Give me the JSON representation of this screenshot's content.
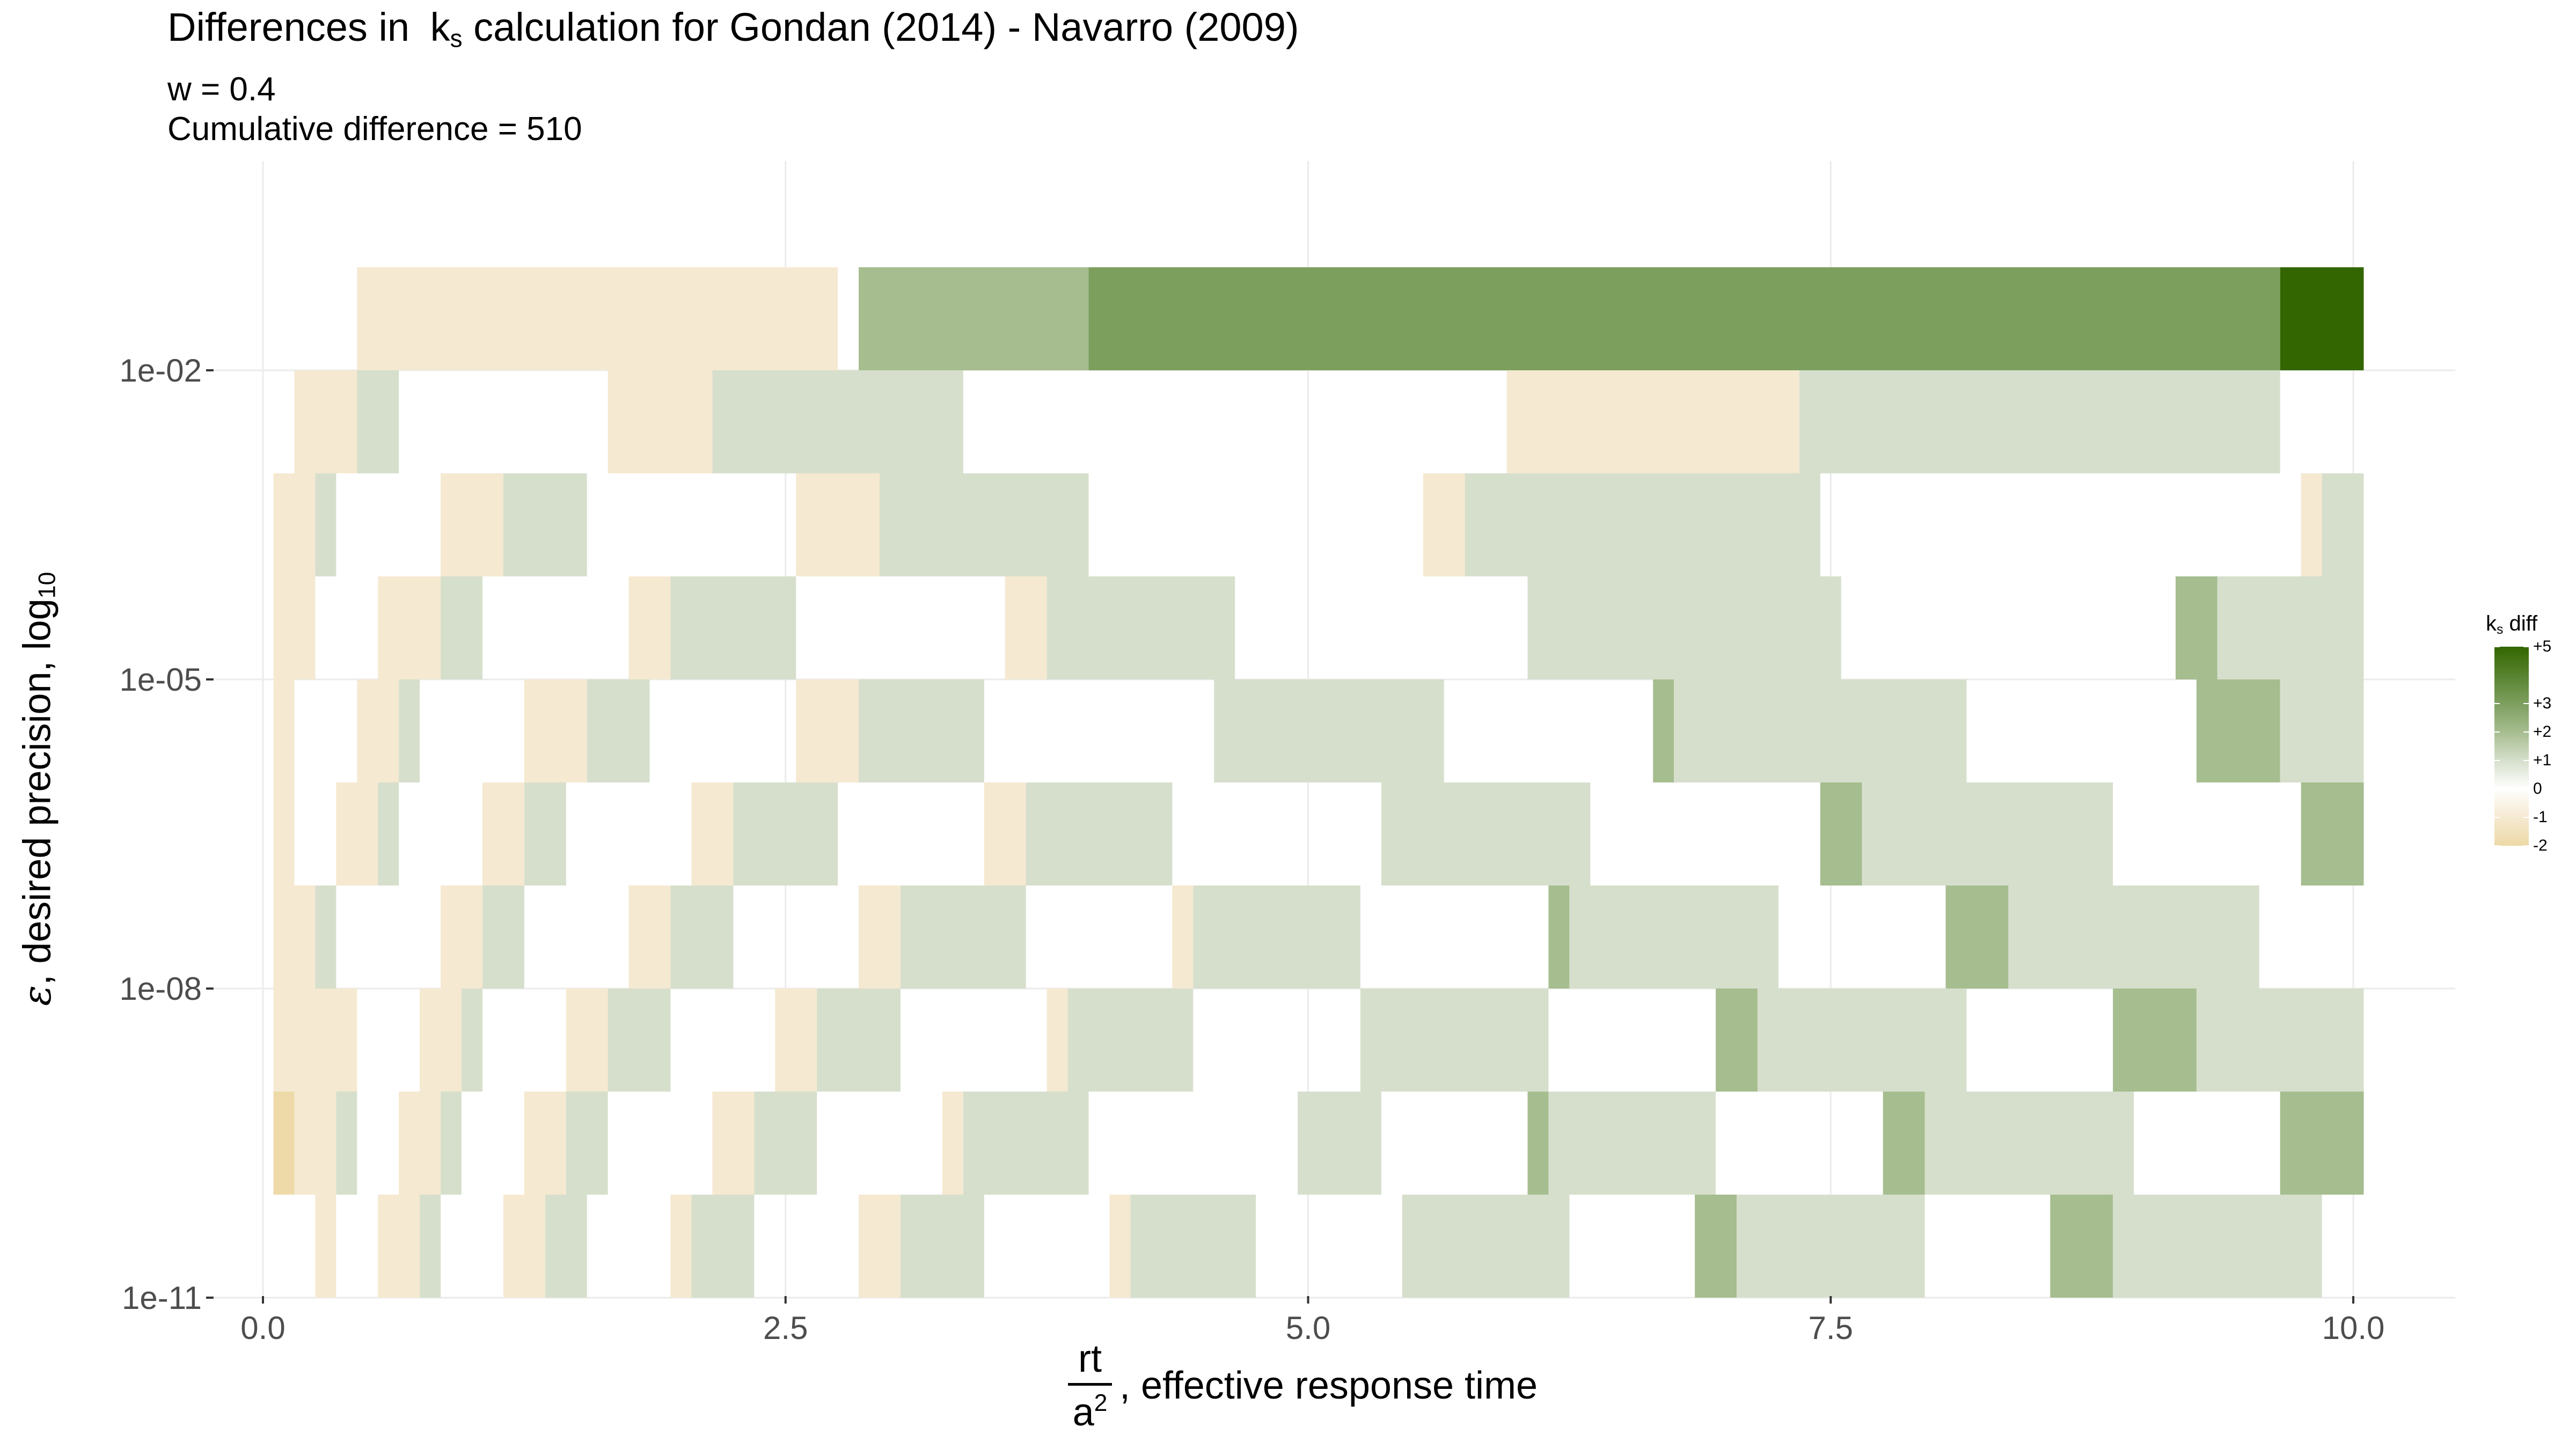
{
  "title": {
    "prefix": "Differences in",
    "k": "k",
    "k_sub": "s",
    "suffix": "calculation for Gondan (2014) - Navarro (2009)"
  },
  "subtitle_lines": [
    "w = 0.4",
    "Cumulative difference = 510"
  ],
  "chart_data": {
    "type": "heatmap",
    "xlabel": {
      "numerator": "rt",
      "denominator": "a",
      "denominator_sup": "2",
      "text": ", effective response time"
    },
    "ylabel": {
      "symbol": "ε",
      "text": ", desired precision,  log",
      "sub": "10"
    },
    "xlim": [
      0,
      10
    ],
    "x_ticks": [
      "0.0",
      "2.5",
      "5.0",
      "7.5",
      "10.0"
    ],
    "y_ticks": [
      "1e-02",
      "1e-05",
      "1e-08",
      "1e-11"
    ],
    "y_scale": "log10 of epsilon, rows at log10 = -1.5 to -10.5 in steps of 1",
    "grid": true,
    "legend": {
      "title": "k",
      "title_sub": "s",
      "title_suffix": " diff",
      "placement": "right",
      "labels": [
        "+5",
        "+3",
        "+2",
        "+1",
        "0",
        "-1",
        "-2"
      ],
      "colors": {
        "+5": "#336600",
        "+3": "#7d9f5e",
        "+2": "#a6bd8f",
        "+1": "#d6dfcc",
        "0": "#ffffff",
        "-1": "#f5e9d1",
        "-2": "#eddaa8"
      }
    },
    "rows": [
      {
        "log10_eps": -1.5,
        "segments": [
          [
            0.45,
            2.75,
            -1
          ],
          [
            2.85,
            3.95,
            2
          ],
          [
            3.95,
            9.65,
            3
          ],
          [
            9.65,
            10.05,
            5
          ]
        ]
      },
      {
        "log10_eps": -2.5,
        "segments": [
          [
            0.15,
            0.45,
            -1
          ],
          [
            0.45,
            0.65,
            1
          ],
          [
            1.65,
            2.15,
            -1
          ],
          [
            2.15,
            3.35,
            1
          ],
          [
            5.95,
            7.35,
            -1
          ],
          [
            7.35,
            9.65,
            1
          ]
        ]
      },
      {
        "log10_eps": -3.5,
        "segments": [
          [
            0.05,
            0.25,
            -1
          ],
          [
            0.25,
            0.35,
            1
          ],
          [
            0.85,
            1.15,
            -1
          ],
          [
            1.15,
            1.55,
            1
          ],
          [
            2.55,
            2.95,
            -1
          ],
          [
            2.95,
            3.95,
            1
          ],
          [
            5.55,
            5.75,
            -1
          ],
          [
            5.75,
            7.45,
            1
          ],
          [
            9.75,
            9.85,
            -1
          ],
          [
            9.85,
            10.05,
            1
          ]
        ]
      },
      {
        "log10_eps": -4.5,
        "segments": [
          [
            0.05,
            0.25,
            -1
          ],
          [
            0.55,
            0.85,
            -1
          ],
          [
            0.85,
            1.05,
            1
          ],
          [
            1.75,
            1.95,
            -1
          ],
          [
            1.95,
            2.55,
            1
          ],
          [
            3.55,
            3.75,
            -1
          ],
          [
            3.75,
            4.65,
            1
          ],
          [
            6.05,
            7.55,
            1
          ],
          [
            9.15,
            9.35,
            2
          ],
          [
            9.35,
            10.05,
            1
          ]
        ]
      },
      {
        "log10_eps": -5.5,
        "segments": [
          [
            0.05,
            0.15,
            -1
          ],
          [
            0.45,
            0.65,
            -1
          ],
          [
            0.65,
            0.75,
            1
          ],
          [
            1.25,
            1.55,
            -1
          ],
          [
            1.55,
            1.85,
            1
          ],
          [
            2.55,
            2.85,
            -1
          ],
          [
            2.85,
            3.45,
            1
          ],
          [
            4.55,
            5.65,
            1
          ],
          [
            6.65,
            6.75,
            2
          ],
          [
            6.75,
            8.15,
            1
          ],
          [
            9.25,
            9.65,
            2
          ],
          [
            9.65,
            10.05,
            1
          ]
        ]
      },
      {
        "log10_eps": -6.5,
        "segments": [
          [
            0.05,
            0.15,
            -1
          ],
          [
            0.35,
            0.55,
            -1
          ],
          [
            0.55,
            0.65,
            1
          ],
          [
            1.05,
            1.25,
            -1
          ],
          [
            1.25,
            1.45,
            1
          ],
          [
            2.05,
            2.25,
            -1
          ],
          [
            2.25,
            2.75,
            1
          ],
          [
            3.45,
            3.65,
            -1
          ],
          [
            3.65,
            4.35,
            1
          ],
          [
            5.35,
            6.35,
            1
          ],
          [
            7.45,
            7.65,
            2
          ],
          [
            7.65,
            8.85,
            1
          ],
          [
            9.75,
            10.05,
            2
          ]
        ]
      },
      {
        "log10_eps": -7.5,
        "segments": [
          [
            0.05,
            0.25,
            -1
          ],
          [
            0.25,
            0.35,
            1
          ],
          [
            0.85,
            1.05,
            -1
          ],
          [
            1.05,
            1.25,
            1
          ],
          [
            1.75,
            1.95,
            -1
          ],
          [
            1.95,
            2.25,
            1
          ],
          [
            2.85,
            3.05,
            -1
          ],
          [
            3.05,
            3.65,
            1
          ],
          [
            4.35,
            4.45,
            -1
          ],
          [
            4.45,
            5.25,
            1
          ],
          [
            6.15,
            6.25,
            2
          ],
          [
            6.25,
            7.25,
            1
          ],
          [
            8.05,
            8.35,
            2
          ],
          [
            8.35,
            9.55,
            1
          ]
        ]
      },
      {
        "log10_eps": -8.5,
        "segments": [
          [
            0.05,
            0.15,
            -1
          ],
          [
            0.15,
            0.45,
            -1
          ],
          [
            0.75,
            0.95,
            -1
          ],
          [
            0.95,
            1.05,
            1
          ],
          [
            1.45,
            1.65,
            -1
          ],
          [
            1.65,
            1.95,
            1
          ],
          [
            2.45,
            2.65,
            -1
          ],
          [
            2.65,
            3.05,
            1
          ],
          [
            3.75,
            3.85,
            -1
          ],
          [
            3.85,
            4.45,
            1
          ],
          [
            5.25,
            6.15,
            1
          ],
          [
            6.95,
            7.15,
            2
          ],
          [
            7.15,
            8.15,
            1
          ],
          [
            8.85,
            9.25,
            2
          ],
          [
            9.25,
            10.05,
            1
          ]
        ]
      },
      {
        "log10_eps": -9.5,
        "segments": [
          [
            0.05,
            0.15,
            -2
          ],
          [
            0.15,
            0.35,
            -1
          ],
          [
            0.35,
            0.45,
            1
          ],
          [
            0.65,
            0.85,
            -1
          ],
          [
            0.85,
            0.95,
            1
          ],
          [
            1.25,
            1.45,
            -1
          ],
          [
            1.45,
            1.65,
            1
          ],
          [
            2.15,
            2.35,
            -1
          ],
          [
            2.35,
            2.65,
            1
          ],
          [
            3.25,
            3.35,
            -1
          ],
          [
            3.35,
            3.95,
            1
          ],
          [
            4.95,
            5.35,
            1
          ],
          [
            6.05,
            6.15,
            2
          ],
          [
            6.15,
            6.95,
            1
          ],
          [
            7.75,
            7.95,
            2
          ],
          [
            7.95,
            8.95,
            1
          ],
          [
            9.65,
            10.05,
            2
          ]
        ]
      },
      {
        "log10_eps": -10.5,
        "segments": [
          [
            0.25,
            0.35,
            -1
          ],
          [
            0.55,
            0.75,
            -1
          ],
          [
            0.75,
            0.85,
            1
          ],
          [
            1.15,
            1.35,
            -1
          ],
          [
            1.35,
            1.55,
            1
          ],
          [
            1.95,
            2.05,
            -1
          ],
          [
            2.05,
            2.35,
            1
          ],
          [
            2.85,
            3.05,
            -1
          ],
          [
            3.05,
            3.45,
            1
          ],
          [
            4.05,
            4.15,
            -1
          ],
          [
            4.15,
            4.75,
            1
          ],
          [
            5.45,
            6.25,
            1
          ],
          [
            6.85,
            7.05,
            2
          ],
          [
            7.05,
            7.95,
            1
          ],
          [
            8.55,
            8.85,
            2
          ],
          [
            8.85,
            9.85,
            1
          ]
        ]
      }
    ]
  }
}
